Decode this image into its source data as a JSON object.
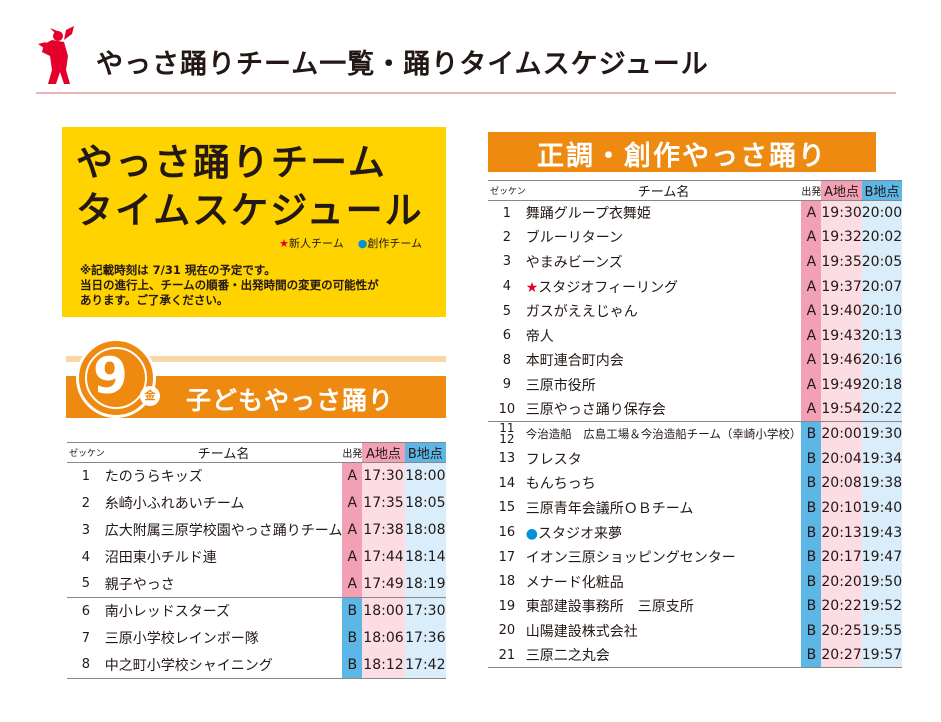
{
  "header": {
    "title": "やっさ踊りチーム一覧・踊りタイムスケジュール"
  },
  "infobox": {
    "title_line1": "やっさ踊りチーム",
    "title_line2": "タイムスケジュール",
    "legend_new": "新人チーム",
    "legend_creative": "創作チーム",
    "note_line1": "※記載時刻は 7/31 現在の予定です。",
    "note_line2": "当日の進行上、チームの順番・出発時間の変更の可能性が",
    "note_line3": "あります。ご了承ください。"
  },
  "left_section": {
    "day_number": "9",
    "day_of_week": "金",
    "title": "子どもやっさ踊り",
    "headers": {
      "zekken": "ゼッケン",
      "name": "チーム名",
      "dep": "出発",
      "a": "A地点",
      "b": "B地点"
    },
    "rows": [
      {
        "no": "1",
        "name": "たのうらキッズ",
        "dep": "A",
        "a": "17:30",
        "b": "18:00"
      },
      {
        "no": "2",
        "name": "糸崎小ふれあいチーム",
        "dep": "A",
        "a": "17:35",
        "b": "18:05"
      },
      {
        "no": "3",
        "name": "広大附属三原学校園やっさ踊りチーム",
        "dep": "A",
        "a": "17:38",
        "b": "18:08"
      },
      {
        "no": "4",
        "name": "沼田東小チルド連",
        "dep": "A",
        "a": "17:44",
        "b": "18:14"
      },
      {
        "no": "5",
        "name": "親子やっさ",
        "dep": "A",
        "a": "17:49",
        "b": "18:19"
      },
      {
        "no": "6",
        "name": "南小レッドスターズ",
        "dep": "B",
        "a": "18:00",
        "b": "17:30"
      },
      {
        "no": "7",
        "name": "三原小学校レインボー隊",
        "dep": "B",
        "a": "18:06",
        "b": "17:36"
      },
      {
        "no": "8",
        "name": "中之町小学校シャイニング",
        "dep": "B",
        "a": "18:12",
        "b": "17:42"
      }
    ]
  },
  "right_section": {
    "title": "正調・創作やっさ踊り",
    "headers": {
      "zekken": "ゼッケン",
      "name": "チーム名",
      "dep": "出発",
      "a": "A地点",
      "b": "B地点"
    },
    "rows": [
      {
        "no": "1",
        "name": "舞踊グループ衣舞姫",
        "dep": "A",
        "a": "19:30",
        "b": "20:00"
      },
      {
        "no": "2",
        "name": "ブルーリターン",
        "dep": "A",
        "a": "19:32",
        "b": "20:02"
      },
      {
        "no": "3",
        "name": "やまみビーンズ",
        "dep": "A",
        "a": "19:35",
        "b": "20:05"
      },
      {
        "no": "4",
        "mark": "★",
        "name": "スタジオフィーリング",
        "dep": "A",
        "a": "19:37",
        "b": "20:07"
      },
      {
        "no": "5",
        "name": "ガスがええじゃん",
        "dep": "A",
        "a": "19:40",
        "b": "20:10"
      },
      {
        "no": "6",
        "name": "帝人",
        "dep": "A",
        "a": "19:43",
        "b": "20:13"
      },
      {
        "no": "8",
        "name": "本町連合町内会",
        "dep": "A",
        "a": "19:46",
        "b": "20:16"
      },
      {
        "no": "9",
        "name": "三原市役所",
        "dep": "A",
        "a": "19:49",
        "b": "20:18"
      },
      {
        "no": "10",
        "name": "三原やっさ踊り保存会",
        "dep": "A",
        "a": "19:54",
        "b": "20:22"
      },
      {
        "no": "11",
        "no2": "12",
        "name": "今治造船　広島工場＆今治造船チーム（幸崎小学校）",
        "dep": "B",
        "a": "20:00",
        "b": "19:30"
      },
      {
        "no": "13",
        "name": "フレスタ",
        "dep": "B",
        "a": "20:04",
        "b": "19:34"
      },
      {
        "no": "14",
        "name": "もんちっち",
        "dep": "B",
        "a": "20:08",
        "b": "19:38"
      },
      {
        "no": "15",
        "name": "三原青年会議所ＯＢチーム",
        "dep": "B",
        "a": "20:10",
        "b": "19:40"
      },
      {
        "no": "16",
        "mark": "●",
        "name": "スタジオ来夢",
        "dep": "B",
        "a": "20:13",
        "b": "19:43"
      },
      {
        "no": "17",
        "name": "イオン三原ショッピングセンター",
        "dep": "B",
        "a": "20:17",
        "b": "19:47"
      },
      {
        "no": "18",
        "name": "メナード化粧品",
        "dep": "B",
        "a": "20:20",
        "b": "19:50"
      },
      {
        "no": "19",
        "name": "東部建設事務所　三原支所",
        "dep": "B",
        "a": "20:22",
        "b": "19:52"
      },
      {
        "no": "20",
        "name": "山陽建設株式会社",
        "dep": "B",
        "a": "20:25",
        "b": "19:55"
      },
      {
        "no": "21",
        "name": "三原二之丸会",
        "dep": "B",
        "a": "20:27",
        "b": "19:57"
      }
    ]
  },
  "colors": {
    "accent_orange": "#ed8a0f",
    "box_yellow": "#ffd300",
    "a_pink": "#f2a0b4",
    "b_blue": "#5cb6e6",
    "new_team_red": "#e4002b",
    "creative_blue": "#0092d8"
  },
  "icons": {
    "logo": "dancer-icon"
  }
}
